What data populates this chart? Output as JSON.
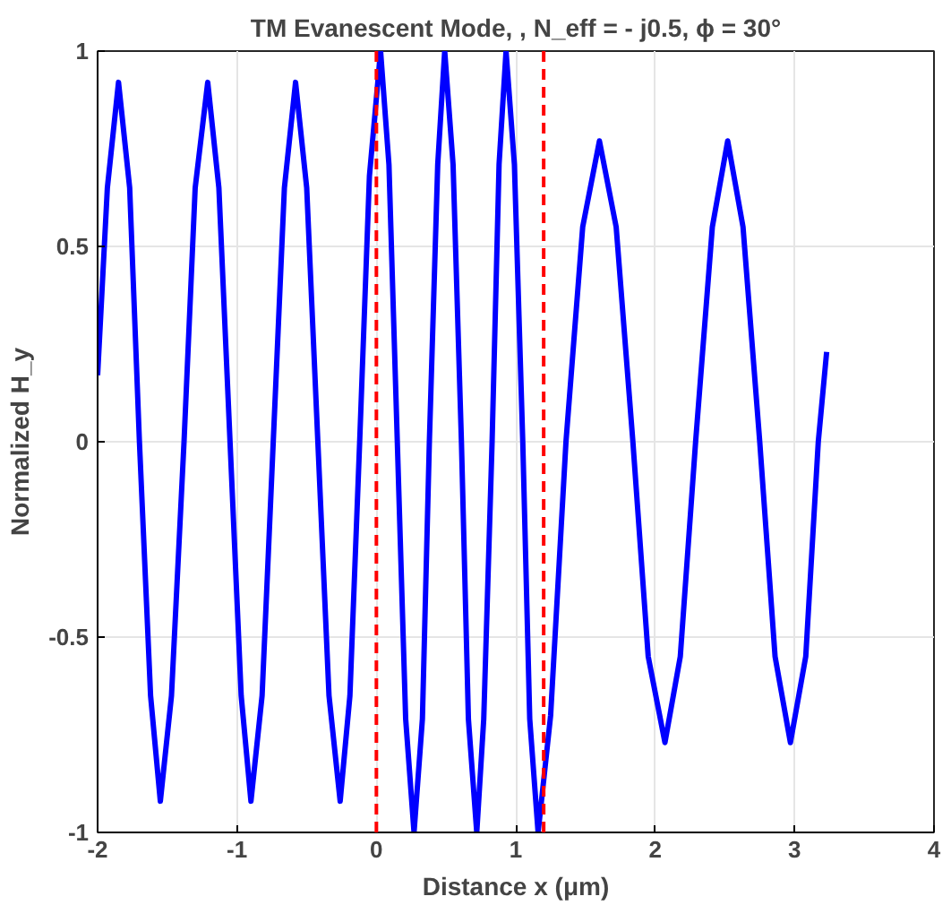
{
  "chart_data": {
    "type": "line",
    "title": "TM Evanescent Mode, , N_eff = - j0.5, ϕ = 30°",
    "xlabel": "Distance x (μm)",
    "ylabel": "Normalized H_y",
    "xlim": [
      -2,
      4
    ],
    "ylim": [
      -1,
      1
    ],
    "xticks": [
      -2,
      -1,
      0,
      1,
      2,
      3,
      4
    ],
    "yticks": [
      -1,
      -0.5,
      0,
      0.5,
      1
    ],
    "grid": true,
    "line_style": "solid",
    "marker": "none",
    "series": [
      {
        "color": "#0000ff",
        "x": [
          -2.0,
          -1.93,
          -1.85,
          -1.77,
          -1.7,
          -1.62,
          -1.55,
          -1.47,
          -1.38,
          -1.3,
          -1.21,
          -1.13,
          -1.05,
          -0.97,
          -0.9,
          -0.82,
          -0.74,
          -0.66,
          -0.58,
          -0.5,
          -0.42,
          -0.34,
          -0.26,
          -0.19,
          -0.12,
          -0.05,
          0.03,
          0.09,
          0.15,
          0.21,
          0.27,
          0.33,
          0.38,
          0.44,
          0.49,
          0.55,
          0.61,
          0.66,
          0.72,
          0.77,
          0.83,
          0.88,
          0.93,
          0.99,
          1.05,
          1.1,
          1.16,
          1.25,
          1.36,
          1.48,
          1.6,
          1.72,
          1.84,
          1.95,
          2.07,
          2.18,
          2.29,
          2.41,
          2.52,
          2.63,
          2.75,
          2.86,
          2.97,
          3.08,
          3.17,
          3.23
        ],
        "values": [
          0.17,
          0.65,
          0.92,
          0.65,
          0,
          -0.65,
          -0.92,
          -0.65,
          0,
          0.65,
          0.92,
          0.65,
          0,
          -0.65,
          -0.92,
          -0.65,
          0,
          0.65,
          0.92,
          0.65,
          0,
          -0.65,
          -0.92,
          -0.65,
          0,
          0.68,
          1,
          0.71,
          0,
          -0.71,
          -1,
          -0.71,
          0,
          0.71,
          1,
          0.71,
          0,
          -0.71,
          -1,
          -0.71,
          0,
          0.71,
          1,
          0.71,
          0,
          -0.71,
          -1,
          -0.7,
          0,
          0.55,
          0.77,
          0.55,
          0,
          -0.55,
          -0.77,
          -0.55,
          0,
          0.55,
          0.77,
          0.55,
          0,
          -0.55,
          -0.77,
          -0.55,
          0,
          0.23
        ]
      }
    ],
    "ref_lines": [
      {
        "axis": "x",
        "value": 0,
        "color": "#ff0000",
        "line_style": "dashed"
      },
      {
        "axis": "x",
        "value": 1.2,
        "color": "#ff0000",
        "line_style": "dashed"
      }
    ]
  }
}
